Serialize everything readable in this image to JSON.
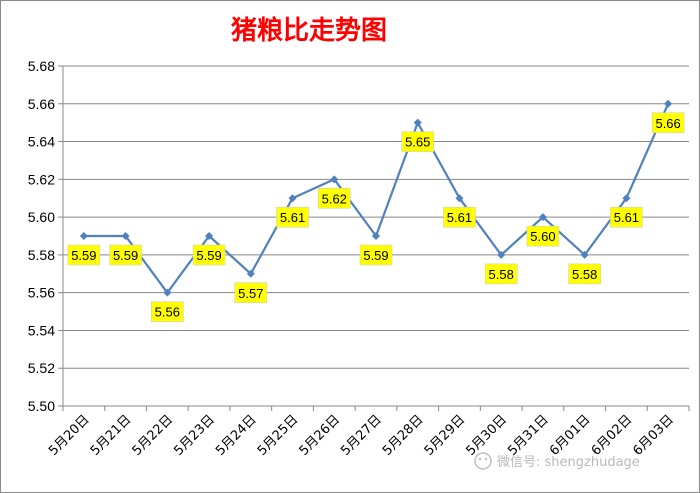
{
  "chart_data": {
    "type": "line",
    "title": "猪粮比走势图",
    "categories": [
      "5月20日",
      "5月21日",
      "5月22日",
      "5月23日",
      "5月24日",
      "5月25日",
      "5月26日",
      "5月27日",
      "5月28日",
      "5月29日",
      "5月30日",
      "5月31日",
      "6月01日",
      "6月02日",
      "6月03日"
    ],
    "series": [
      {
        "values": [
          5.59,
          5.59,
          5.56,
          5.59,
          5.57,
          5.61,
          5.62,
          5.59,
          5.65,
          5.61,
          5.58,
          5.6,
          5.58,
          5.61,
          5.66
        ]
      }
    ],
    "data_labels": [
      "5.59",
      "5.59",
      "5.56",
      "5.59",
      "5.57",
      "5.61",
      "5.62",
      "5.59",
      "5.65",
      "5.61",
      "5.58",
      "5.60",
      "5.58",
      "5.61",
      "5.66"
    ],
    "yticks": [
      "5.50",
      "5.52",
      "5.54",
      "5.56",
      "5.58",
      "5.60",
      "5.62",
      "5.64",
      "5.66",
      "5.68"
    ],
    "ylim": [
      5.5,
      5.68
    ],
    "xlabel": "",
    "ylabel": "",
    "legend": "none",
    "grid": true,
    "colors": {
      "line": "#4f81bd",
      "label_fill": "#ffff00",
      "grid": "#888888",
      "title": "#ff0000"
    }
  },
  "watermark": {
    "text": "微信号: shengzhudage"
  }
}
